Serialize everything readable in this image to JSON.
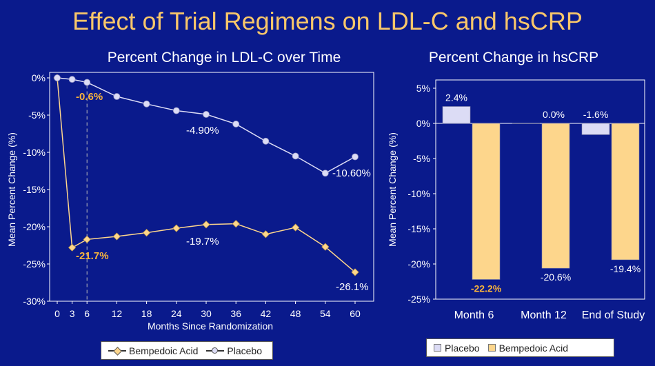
{
  "page_title": "Effect of Trial Regimens on LDL-C and hsCRP",
  "colors": {
    "background": "#0a1a8c",
    "title": "#f9c76a",
    "bempedoic": "#fdd68c",
    "placebo": "#dcdcf5",
    "highlight_label": "#f9b43c"
  },
  "chart_data": [
    {
      "type": "line",
      "title": "Percent Change in LDL-C over Time",
      "xlabel": "Months Since Randomization",
      "ylabel": "Mean Percent Change (%)",
      "x": [
        0,
        3,
        6,
        12,
        18,
        24,
        30,
        36,
        42,
        48,
        54,
        60
      ],
      "x_ticks": [
        "0",
        "3",
        "6",
        "12",
        "18",
        "24",
        "30",
        "36",
        "42",
        "48",
        "54",
        "60"
      ],
      "ylim": [
        -30,
        0
      ],
      "y_ticks": [
        "0%",
        "-5%",
        "-10%",
        "-15%",
        "-20%",
        "-25%",
        "-30%"
      ],
      "grid": false,
      "legend_position": "bottom",
      "series": [
        {
          "name": "Bempedoic Acid",
          "marker": "diamond",
          "values": [
            0,
            -22.8,
            -21.7,
            -21.3,
            -20.8,
            -20.2,
            -19.7,
            -19.6,
            -21.0,
            -20.1,
            -22.7,
            -26.1
          ]
        },
        {
          "name": "Placebo",
          "marker": "circle",
          "values": [
            0,
            -0.2,
            -0.6,
            -2.5,
            -3.5,
            -4.4,
            -4.9,
            -6.2,
            -8.5,
            -10.5,
            -12.8,
            -10.6
          ]
        }
      ],
      "annotations": [
        {
          "series": "Placebo",
          "x": 6,
          "text": "-0.6%",
          "highlight": true
        },
        {
          "series": "Placebo",
          "x": 30,
          "text": "-4.90%",
          "highlight": false
        },
        {
          "series": "Placebo",
          "x": 60,
          "text": "-10.60%",
          "highlight": false
        },
        {
          "series": "Bempedoic Acid",
          "x": 6,
          "text": "-21.7%",
          "highlight": true
        },
        {
          "series": "Bempedoic Acid",
          "x": 30,
          "text": "-19.7%",
          "highlight": false
        },
        {
          "series": "Bempedoic Acid",
          "x": 60,
          "text": "-26.1%",
          "highlight": false
        }
      ],
      "reference_line": {
        "x": 6,
        "style": "dashed"
      }
    },
    {
      "type": "bar",
      "title": "Percent Change in hsCRP",
      "ylabel": "Mean Percent Change (%)",
      "categories": [
        "Month 6",
        "Month 12",
        "End of Study"
      ],
      "ylim": [
        -25,
        5
      ],
      "y_ticks": [
        "5%",
        "0%",
        "-5%",
        "-10%",
        "-15%",
        "-20%",
        "-25%"
      ],
      "grid": false,
      "legend_position": "bottom",
      "series": [
        {
          "name": "Placebo",
          "values": [
            2.4,
            0.0,
            -1.6
          ],
          "labels": [
            "2.4%",
            "0.0%",
            "-1.6%"
          ]
        },
        {
          "name": "Bempedoic Acid",
          "values": [
            -22.2,
            -20.6,
            -19.4
          ],
          "labels": [
            "-22.2%",
            "-20.6%",
            "-19.4%"
          ],
          "highlight_first": true
        }
      ]
    }
  ]
}
